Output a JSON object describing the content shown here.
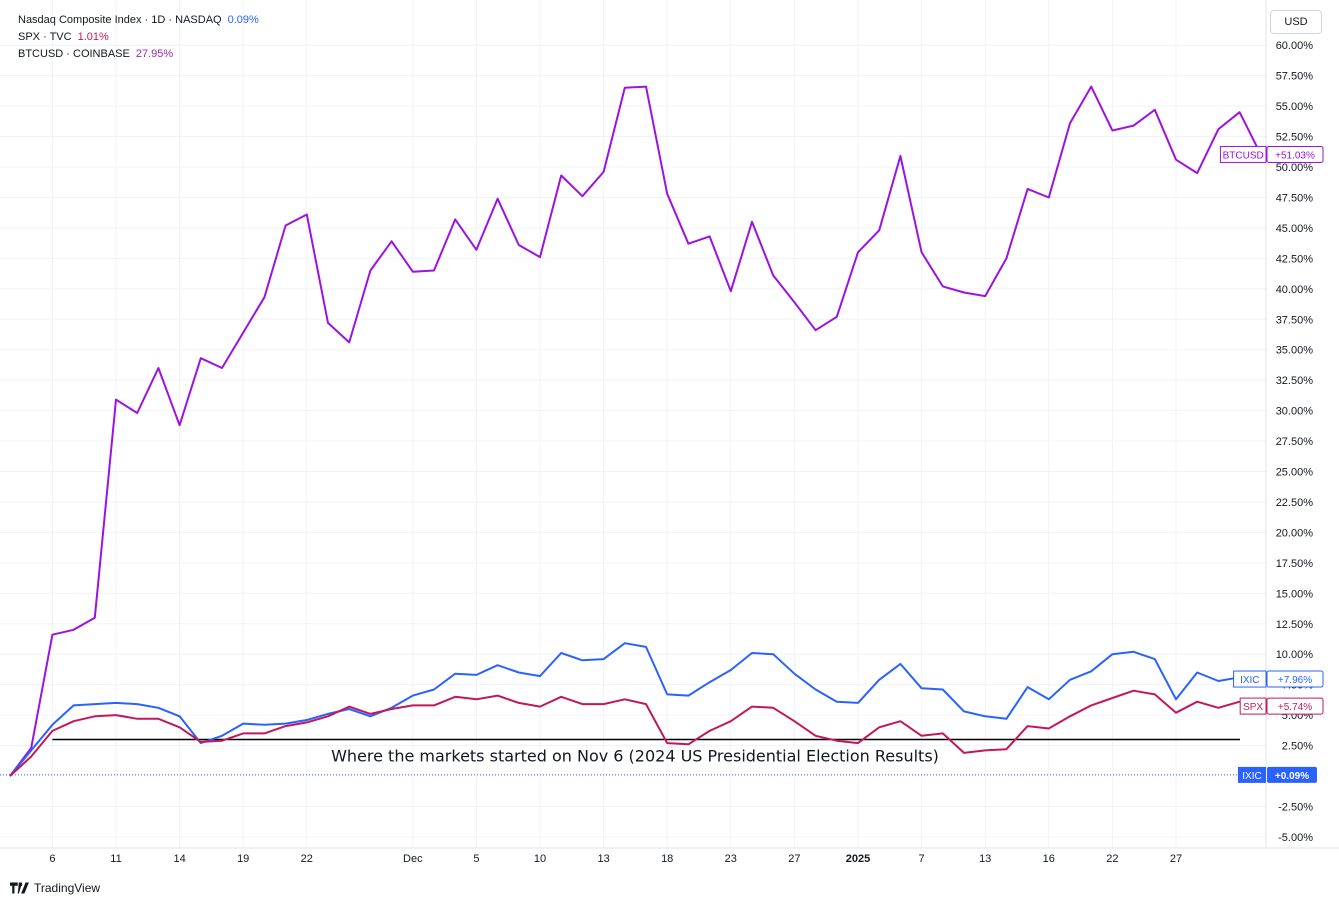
{
  "legend": [
    {
      "name": "Nasdaq Composite Index · 1D · NASDAQ",
      "value": "0.09%",
      "color": "#2962ff"
    },
    {
      "name": "SPX · TVC",
      "value": "1.01%",
      "color": "#c2185b"
    },
    {
      "name": "BTCUSD · COINBASE",
      "value": "27.95%",
      "color": "#9c27b0"
    }
  ],
  "currency": "USD",
  "brand": "TradingView",
  "annotation": "Where the markets started on Nov 6 (2024 US Presidential Election Results)",
  "colors": {
    "ixic": "#2962ff",
    "spx": "#c2185b",
    "btc": "#9c12e0",
    "grid": "#f0f3fa",
    "baseline": "#2962ff"
  },
  "chart_data": {
    "type": "line",
    "xlabel": "",
    "ylabel": "",
    "ylim": [
      -6.5,
      62
    ],
    "y_ticks": [
      "60.00%",
      "57.50%",
      "55.00%",
      "52.50%",
      "50.00%",
      "47.50%",
      "45.00%",
      "42.50%",
      "40.00%",
      "37.50%",
      "35.00%",
      "32.50%",
      "30.00%",
      "27.50%",
      "25.00%",
      "22.50%",
      "20.00%",
      "17.50%",
      "15.00%",
      "12.50%",
      "10.00%",
      "7.50%",
      "5.00%",
      "2.50%",
      "-2.50%",
      "-5.00%"
    ],
    "x_ticks": [
      {
        "label": "6",
        "i": 2,
        "bold": false
      },
      {
        "label": "11",
        "i": 5,
        "bold": false
      },
      {
        "label": "14",
        "i": 8,
        "bold": false
      },
      {
        "label": "19",
        "i": 11,
        "bold": false
      },
      {
        "label": "22",
        "i": 14,
        "bold": false
      },
      {
        "label": "Dec",
        "i": 19,
        "bold": false
      },
      {
        "label": "5",
        "i": 22,
        "bold": false
      },
      {
        "label": "10",
        "i": 25,
        "bold": false
      },
      {
        "label": "13",
        "i": 28,
        "bold": false
      },
      {
        "label": "18",
        "i": 31,
        "bold": false
      },
      {
        "label": "23",
        "i": 34,
        "bold": false
      },
      {
        "label": "27",
        "i": 37,
        "bold": false
      },
      {
        "label": "2025",
        "i": 40,
        "bold": true
      },
      {
        "label": "7",
        "i": 43,
        "bold": false
      },
      {
        "label": "13",
        "i": 46,
        "bold": false
      },
      {
        "label": "16",
        "i": 49,
        "bold": false
      },
      {
        "label": "22",
        "i": 52,
        "bold": false
      },
      {
        "label": "27",
        "i": 55,
        "bold": false
      }
    ],
    "reference_line": 3.0,
    "series": [
      {
        "name": "BTCUSD",
        "label": "+51.03%",
        "color": "#9c12e0",
        "values": [
          0,
          2.3,
          11.6,
          12.0,
          13.0,
          30.9,
          29.8,
          33.5,
          28.8,
          34.3,
          33.5,
          36.4,
          39.3,
          45.2,
          46.1,
          37.2,
          35.6,
          41.5,
          43.9,
          41.4,
          41.5,
          45.7,
          43.2,
          47.4,
          43.6,
          42.6,
          49.3,
          47.6,
          49.6,
          56.5,
          56.6,
          47.8,
          43.7,
          44.3,
          39.8,
          45.5,
          41.1,
          38.9,
          36.6,
          37.7,
          43.0,
          44.8,
          50.9,
          43.0,
          40.2,
          39.7,
          39.4,
          42.5,
          48.2,
          47.5,
          53.6,
          56.6,
          53.0,
          53.4,
          54.7,
          50.6,
          49.5,
          53.1,
          54.5,
          51.03
        ]
      },
      {
        "name": "IXIC",
        "label": "+7.96%",
        "color": "#2962ff",
        "values": [
          0,
          2.1,
          4.2,
          5.8,
          5.9,
          6.0,
          5.9,
          5.6,
          4.9,
          2.7,
          3.3,
          4.3,
          4.2,
          4.3,
          4.6,
          5.1,
          5.5,
          4.9,
          5.6,
          6.6,
          7.1,
          8.4,
          8.3,
          9.1,
          8.5,
          8.2,
          10.1,
          9.5,
          9.6,
          10.9,
          10.6,
          6.7,
          6.6,
          7.7,
          8.7,
          10.1,
          10.0,
          8.4,
          7.1,
          6.1,
          6.0,
          7.9,
          9.2,
          7.2,
          7.1,
          5.3,
          4.9,
          4.7,
          7.3,
          6.3,
          7.9,
          8.6,
          10.0,
          10.2,
          9.6,
          6.3,
          8.5,
          7.8,
          8.1,
          7.96
        ]
      },
      {
        "name": "SPX",
        "label": "+5.74%",
        "color": "#c2185b",
        "values": [
          0,
          1.6,
          3.7,
          4.5,
          4.9,
          5.0,
          4.7,
          4.7,
          4.0,
          2.8,
          2.9,
          3.5,
          3.5,
          4.1,
          4.4,
          4.9,
          5.7,
          5.1,
          5.5,
          5.8,
          5.8,
          6.5,
          6.3,
          6.6,
          6.0,
          5.7,
          6.5,
          5.9,
          5.9,
          6.3,
          5.9,
          2.7,
          2.6,
          3.7,
          4.5,
          5.7,
          5.6,
          4.5,
          3.3,
          2.9,
          2.7,
          4.0,
          4.5,
          3.3,
          3.5,
          1.9,
          2.1,
          2.2,
          4.1,
          3.9,
          4.9,
          5.8,
          6.4,
          7.0,
          6.7,
          5.2,
          6.1,
          5.6,
          6.1,
          5.74
        ]
      },
      {
        "name": "IXIC",
        "label": "+0.09%",
        "color": "#2962ff",
        "baseline": true,
        "values": [
          0.09
        ]
      }
    ]
  }
}
